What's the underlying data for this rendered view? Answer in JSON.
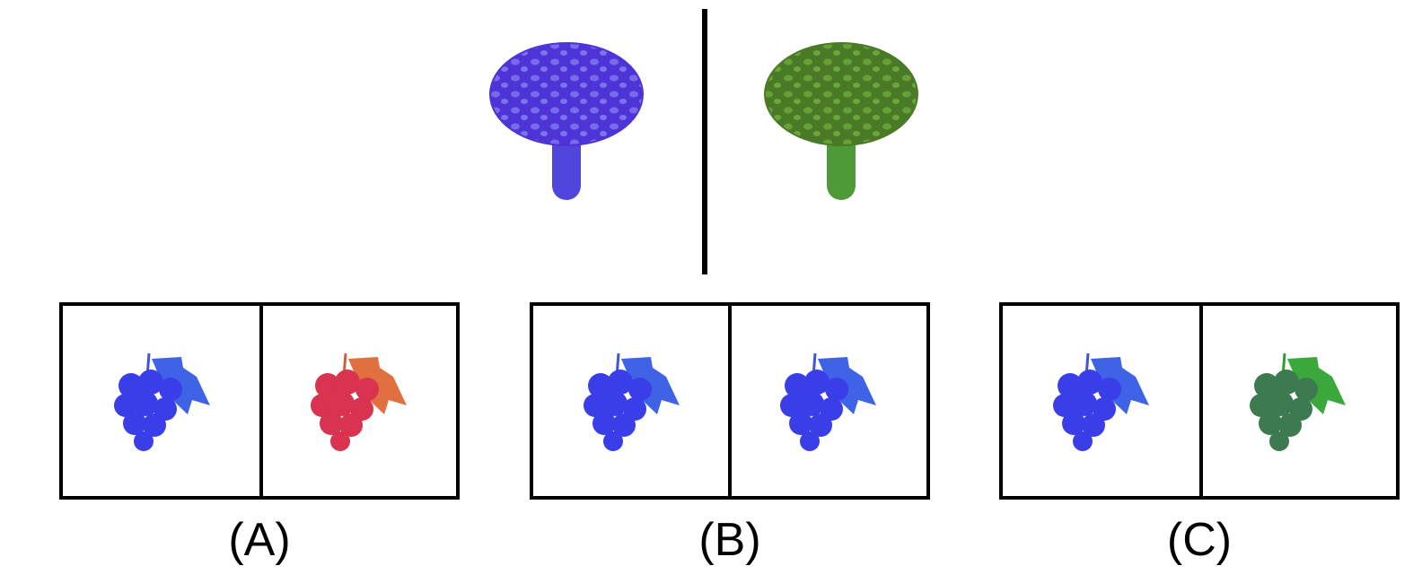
{
  "reference": {
    "left": {
      "object": "mushroom",
      "color": "#5a3de0"
    },
    "right": {
      "object": "mushroom",
      "color": "#4e8a2e"
    }
  },
  "options": [
    {
      "label": "(A)",
      "left": {
        "object": "grapes",
        "color": "#3a3ee8"
      },
      "right": {
        "object": "grapes",
        "color": "#d9334f"
      }
    },
    {
      "label": "(B)",
      "left": {
        "object": "grapes",
        "color": "#3a3ee8"
      },
      "right": {
        "object": "grapes",
        "color": "#3a3ee8"
      }
    },
    {
      "label": "(C)",
      "left": {
        "object": "grapes",
        "color": "#3a3ee8"
      },
      "right": {
        "object": "grapes",
        "color": "#3d7a4f"
      }
    }
  ],
  "colors": {
    "blue_leaf": "#3f63e6",
    "red_leaf": "#e07040",
    "green_leaf": "#3aa83a"
  }
}
